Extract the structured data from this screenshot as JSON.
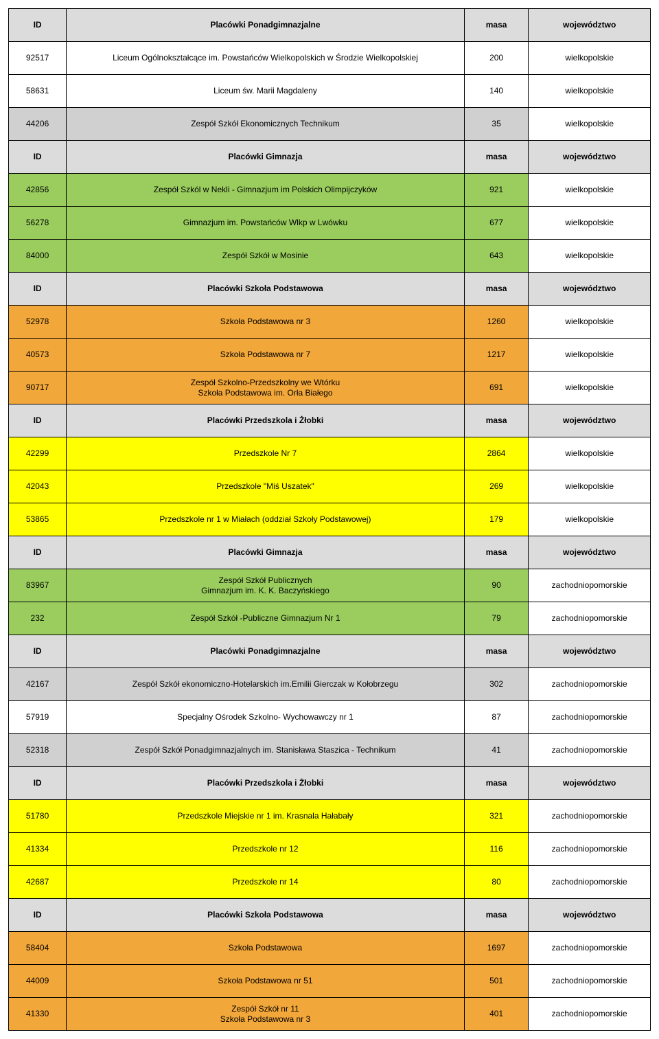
{
  "colors": {
    "header": "#dcdcdc",
    "green": "#9acd5e",
    "orange": "#f2a73a",
    "yellow": "#ffff00",
    "white": "#ffffff",
    "grayAlt": "#d0d0d0"
  },
  "headerLabels": {
    "id": "ID",
    "masa": "masa",
    "woj": "województwo",
    "ponadgim": "Placówki Ponadgimnazjalne",
    "gimnazja": "Placówki Gimnazja",
    "podst": "Placówki Szkoła Podstawowa",
    "przedszk": "Placówki Przedszkola i Żłobki"
  },
  "sections": [
    {
      "header": "ponadgim",
      "rows": [
        {
          "id": "92517",
          "name": "Liceum Ogólnokształcące im. Powstańców Wielkopolskich w Środzie Wielkopolskiej",
          "masa": "200",
          "woj": "wielkopolskie",
          "color": "white"
        },
        {
          "id": "58631",
          "name": "Liceum św. Marii Magdaleny",
          "masa": "140",
          "woj": "wielkopolskie",
          "color": "white"
        },
        {
          "id": "44206",
          "name": "Zespół Szkół Ekonomicznych Technikum",
          "masa": "35",
          "woj": "wielkopolskie",
          "color": "grayAlt"
        }
      ]
    },
    {
      "header": "gimnazja",
      "rows": [
        {
          "id": "42856",
          "name": "Zespół Szkól w Nekli - Gimnazjum im Polskich Olimpijczyków",
          "masa": "921",
          "woj": "wielkopolskie",
          "color": "green"
        },
        {
          "id": "56278",
          "name": "Gimnazjum im. Powstańców Wlkp w Lwówku",
          "masa": "677",
          "woj": "wielkopolskie",
          "color": "green"
        },
        {
          "id": "84000",
          "name": "Zespół Szkół w Mosinie",
          "masa": "643",
          "woj": "wielkopolskie",
          "color": "green"
        }
      ]
    },
    {
      "header": "podst",
      "rows": [
        {
          "id": "52978",
          "name": "Szkoła Podstawowa nr 3",
          "masa": "1260",
          "woj": "wielkopolskie",
          "color": "orange"
        },
        {
          "id": "40573",
          "name": "Szkoła Podstawowa nr 7",
          "masa": "1217",
          "woj": "wielkopolskie",
          "color": "orange"
        },
        {
          "id": "90717",
          "name": "Zespół Szkolno-Przedszkolny we Wtórku\nSzkoła Podstawowa im. Orła Białego",
          "masa": "691",
          "woj": "wielkopolskie",
          "color": "orange"
        }
      ]
    },
    {
      "header": "przedszk",
      "rows": [
        {
          "id": "42299",
          "name": "Przedszkole Nr 7",
          "masa": "2864",
          "woj": "wielkopolskie",
          "color": "yellow"
        },
        {
          "id": "42043",
          "name": "Przedszkole \"Miś Uszatek\"",
          "masa": "269",
          "woj": "wielkopolskie",
          "color": "yellow"
        },
        {
          "id": "53865",
          "name": "Przedszkole nr 1 w Miałach (oddział Szkoły Podstawowej)",
          "masa": "179",
          "woj": "wielkopolskie",
          "color": "yellow"
        }
      ]
    },
    {
      "header": "gimnazja",
      "rows": [
        {
          "id": "83967",
          "name": "Zespół Szkół Publicznych\nGimnazjum im. K. K. Baczyńskiego",
          "masa": "90",
          "woj": "zachodniopomorskie",
          "color": "green"
        },
        {
          "id": "232",
          "name": "Zespół Szkół -Publiczne Gimnazjum Nr 1",
          "masa": "79",
          "woj": "zachodniopomorskie",
          "color": "green"
        }
      ]
    },
    {
      "header": "ponadgim",
      "rows": [
        {
          "id": "42167",
          "name": "Zespół Szkół ekonomiczno-Hotelarskich im.Emilii Gierczak w Kołobrzegu",
          "masa": "302",
          "woj": "zachodniopomorskie",
          "color": "grayAlt"
        },
        {
          "id": "57919",
          "name": "Specjalny Ośrodek Szkolno- Wychowawczy nr 1",
          "masa": "87",
          "woj": "zachodniopomorskie",
          "color": "white"
        },
        {
          "id": "52318",
          "name": "Zespół Szkół Ponadgimnazjalnych im. Stanisława Staszica - Technikum",
          "masa": "41",
          "woj": "zachodniopomorskie",
          "color": "grayAlt"
        }
      ]
    },
    {
      "header": "przedszk",
      "rows": [
        {
          "id": "51780",
          "name": "Przedszkole Miejskie nr 1 im. Krasnala Hałabały",
          "masa": "321",
          "woj": "zachodniopomorskie",
          "color": "yellow"
        },
        {
          "id": "41334",
          "name": "Przedszkole nr 12",
          "masa": "116",
          "woj": "zachodniopomorskie",
          "color": "yellow"
        },
        {
          "id": "42687",
          "name": "Przedszkole nr 14",
          "masa": "80",
          "woj": "zachodniopomorskie",
          "color": "yellow"
        }
      ]
    },
    {
      "header": "podst",
      "rows": [
        {
          "id": "58404",
          "name": "Szkoła Podstawowa",
          "masa": "1697",
          "woj": "zachodniopomorskie",
          "color": "orange"
        },
        {
          "id": "44009",
          "name": "Szkoła Podstawowa nr 51",
          "masa": "501",
          "woj": "zachodniopomorskie",
          "color": "orange"
        },
        {
          "id": "41330",
          "name": "Zespół Szkół nr 11\nSzkoła Podstawowa nr 3",
          "masa": "401",
          "woj": "zachodniopomorskie",
          "color": "orange"
        }
      ]
    }
  ]
}
